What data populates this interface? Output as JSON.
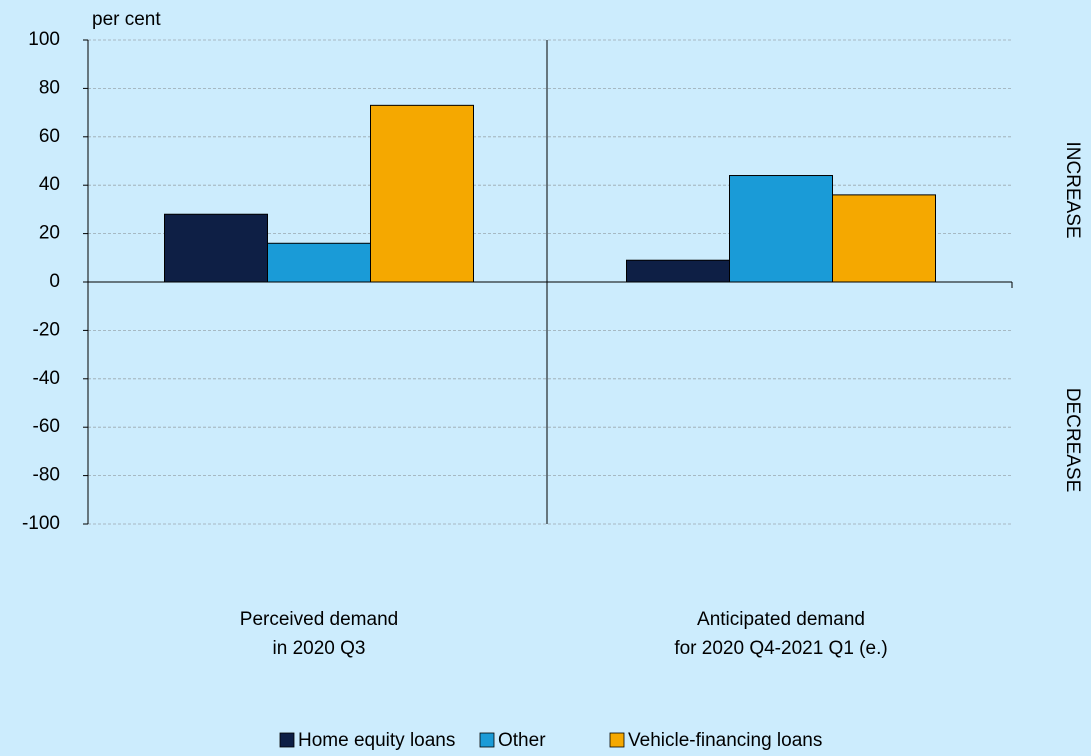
{
  "chart_data": {
    "type": "bar",
    "y_label": "per cent",
    "annotations": [
      "INCREASE",
      "DECREASE"
    ],
    "categories": [
      [
        "Perceived demand",
        "in 2020 Q3"
      ],
      [
        "Anticipated demand",
        "for 2020 Q4-2021 Q1 (e.)"
      ]
    ],
    "series": [
      {
        "name": "Home equity loans",
        "color": "#0e1f45",
        "values": [
          28,
          9
        ]
      },
      {
        "name": "Other",
        "color": "#1a9bd7",
        "values": [
          16,
          44
        ]
      },
      {
        "name": "Vehicle-financing loans",
        "color": "#f5a800",
        "values": [
          73,
          36
        ]
      }
    ],
    "ylim": [
      -100,
      100
    ],
    "yticks": [
      -100,
      -80,
      -60,
      -40,
      -20,
      0,
      20,
      40,
      60,
      80,
      100
    ],
    "grid": true
  }
}
